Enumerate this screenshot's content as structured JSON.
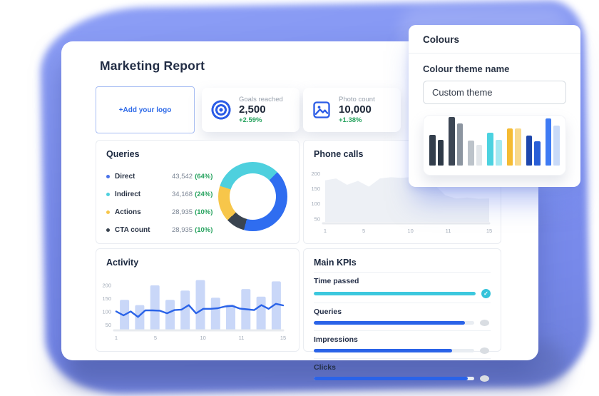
{
  "report": {
    "title": "Marketing Report"
  },
  "logo_box": {
    "label": "+Add your logo"
  },
  "stat_cards": [
    {
      "icon": "target-icon",
      "label": "Goals reached",
      "value": "2,500",
      "delta": "+2.59%"
    },
    {
      "icon": "photo-icon",
      "label": "Photo count",
      "value": "10,000",
      "delta": "+1.38%"
    }
  ],
  "queries": {
    "title": "Queries",
    "legend": [
      {
        "label": "Direct",
        "value": "43,542",
        "percent": "(64%)",
        "color": "#4a72e9"
      },
      {
        "label": "Indirect",
        "value": "34,168",
        "percent": "(24%)",
        "color": "#4ed0de"
      },
      {
        "label": "Actions",
        "value": "28,935",
        "percent": "(10%)",
        "color": "#f7c64a"
      },
      {
        "label": "CTA count",
        "value": "28,935",
        "percent": "(10%)",
        "color": "#3a4450"
      }
    ]
  },
  "phone_calls": {
    "title": "Phone calls"
  },
  "activity": {
    "title": "Activity"
  },
  "kpis": {
    "title": "Main KPIs",
    "items": [
      {
        "label": "Time passed",
        "percent": 100,
        "color": "#3cc8de",
        "status": "check"
      },
      {
        "label": "Queries",
        "percent": 94,
        "color": "#2a63e8",
        "status": "pending"
      },
      {
        "label": "Impressions",
        "percent": 86,
        "color": "#2a63e8",
        "status": "pending"
      },
      {
        "label": "Clicks",
        "percent": 96,
        "color": "#2a63e8",
        "status": "pending"
      }
    ]
  },
  "colours_panel": {
    "title": "Colours",
    "field_label": "Colour theme name",
    "field_value": "Custom theme"
  },
  "colors": {
    "accent_blue": "#2a63e8",
    "green": "#27a35f",
    "splash": "#7e90f0"
  },
  "chart_data": [
    {
      "type": "pie",
      "title": "Queries",
      "display": "donut",
      "labels": [
        "Direct",
        "Indirect",
        "Actions",
        "CTA count"
      ],
      "values": [
        64,
        24,
        10,
        10
      ],
      "legend_position": "left",
      "render": {
        "start_deg": 45,
        "segments": [
          {
            "color": "#2f6df0",
            "sweep_deg": 150
          },
          {
            "color": "#3a4450",
            "sweep_deg": 32
          },
          {
            "color": "#f7c64a",
            "sweep_deg": 61
          },
          {
            "color": "#4ed0de",
            "sweep_deg": 117
          }
        ]
      }
    },
    {
      "type": "area",
      "title": "Phone calls",
      "x_tick_labels": [
        "1",
        "5",
        "10",
        "11",
        "15"
      ],
      "x_tick_pos": [
        0,
        0.235,
        0.52,
        0.75,
        1
      ],
      "y_ticks": [
        200,
        150,
        100,
        50
      ],
      "ylim": [
        45,
        215
      ],
      "values": [
        178,
        184,
        163,
        176,
        157,
        184,
        188,
        186,
        189,
        196,
        163,
        128,
        118,
        121,
        117,
        118
      ],
      "fill": "#edf0f5",
      "grid": false
    },
    {
      "type": "bar+line",
      "title": "Activity",
      "x_tick_labels": [
        "1",
        "5",
        "10",
        "11",
        "15"
      ],
      "x_tick_pos": [
        0,
        0.235,
        0.52,
        0.75,
        1
      ],
      "y_ticks": [
        200,
        150,
        100,
        50
      ],
      "ylim": [
        40,
        235
      ],
      "bars": [
        145,
        125,
        200,
        145,
        180,
        220,
        153,
        127,
        186,
        157,
        215
      ],
      "line": [
        101,
        86,
        101,
        80,
        105,
        105,
        104,
        94,
        106,
        108,
        125,
        94,
        111,
        111,
        113,
        120,
        122,
        112,
        109,
        106,
        125,
        111,
        130,
        124
      ],
      "bar_color": "#c9d7f8",
      "line_color": "#2a63e8",
      "grid": false
    },
    {
      "type": "bar",
      "title": "Colour theme preview",
      "colors": [
        "#333e4c",
        "#2e3947",
        "#3c4654",
        "#8c95a0",
        "#bcc3ca",
        "#e2e6ea",
        "#4cd2e0",
        "#a5e9f2",
        "#f5bb33",
        "#f8d98d",
        "#1e47ac",
        "#2a5fd7",
        "#3e7bf4",
        "#c9daf8"
      ],
      "values": [
        33,
        28,
        52,
        45,
        27,
        22,
        35,
        28,
        40,
        40,
        32,
        26,
        51,
        43
      ]
    }
  ]
}
